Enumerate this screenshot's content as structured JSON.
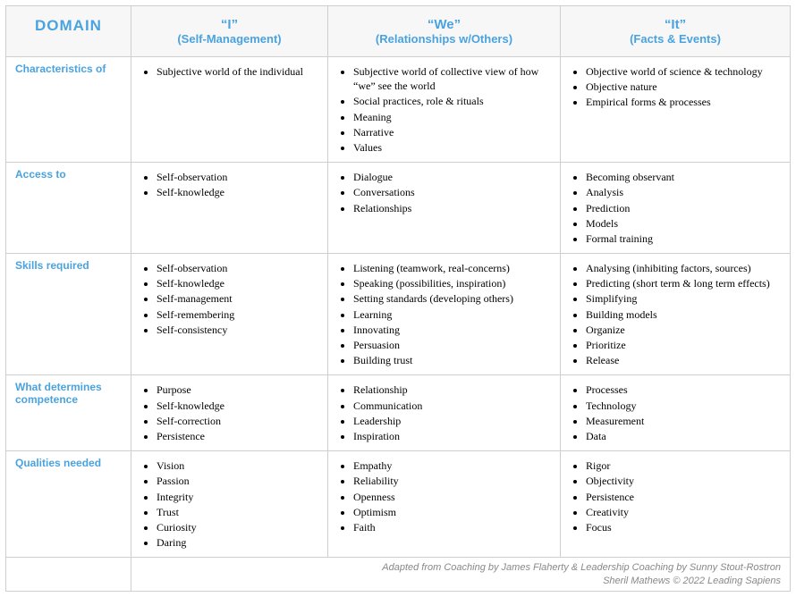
{
  "colors": {
    "accent": "#4aa3df",
    "border": "#cfcfcf",
    "header_bg": "#f7f7f7",
    "credit_text": "#888888"
  },
  "header": {
    "domain": "DOMAIN",
    "cols": [
      {
        "main": "“I”",
        "sub": "(Self-Management)"
      },
      {
        "main": "“We”",
        "sub": "(Relationships w/Others)"
      },
      {
        "main": "“It”",
        "sub": "(Facts & Events)"
      }
    ]
  },
  "rows": [
    {
      "label": "Characteristics of",
      "cells": [
        [
          "Subjective world of the individual"
        ],
        [
          "Subjective world of collective view of how “we” see the world",
          "Social practices, role & rituals",
          "Meaning",
          "Narrative",
          "Values"
        ],
        [
          "Objective world  of science & technology",
          "Objective nature",
          "Empirical forms & processes"
        ]
      ]
    },
    {
      "label": "Access to",
      "cells": [
        [
          "Self-observation",
          "Self-knowledge"
        ],
        [
          "Dialogue",
          "Conversations",
          "Relationships"
        ],
        [
          "Becoming observant",
          "Analysis",
          "Prediction",
          "Models",
          "Formal training"
        ]
      ]
    },
    {
      "label": "Skills required",
      "cells": [
        [
          "Self-observation",
          "Self-knowledge",
          "Self-management",
          "Self-remembering",
          "Self-consistency"
        ],
        [
          "Listening (teamwork, real-concerns)",
          "Speaking (possibilities, inspiration)",
          "Setting standards (developing others)",
          "Learning",
          "Innovating",
          "Persuasion",
          "Building trust"
        ],
        [
          "Analysing (inhibiting factors, sources)",
          "Predicting (short term & long term effects)",
          "Simplifying",
          "Building models",
          "Organize",
          "Prioritize",
          "Release"
        ]
      ]
    },
    {
      "label": "What determines competence",
      "cells": [
        [
          "Purpose",
          "Self-knowledge",
          "Self-correction",
          "Persistence"
        ],
        [
          "Relationship",
          "Communication",
          "Leadership",
          "Inspiration"
        ],
        [
          "Processes",
          "Technology",
          "Measurement",
          "Data"
        ]
      ]
    },
    {
      "label": "Qualities needed",
      "cells": [
        [
          "Vision",
          "Passion",
          "Integrity",
          "Trust",
          "Curiosity",
          "Daring"
        ],
        [
          "Empathy",
          "Reliability",
          "Openness",
          "Optimism",
          "Faith"
        ],
        [
          "Rigor",
          "Objectivity",
          "Persistence",
          "Creativity",
          "Focus"
        ]
      ]
    }
  ],
  "credit": {
    "line1": "Adapted from Coaching by James Flaherty & Leadership Coaching by Sunny Stout-Rostron",
    "line2": "Sheril Mathews  ©  2022 Leading Sapiens"
  }
}
